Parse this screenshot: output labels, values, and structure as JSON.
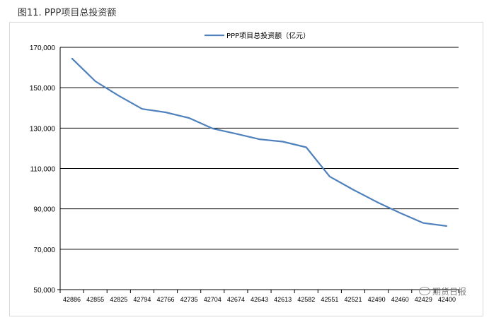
{
  "figure_title": "图11. PPP项目总投资额",
  "watermark": "期货日报",
  "colors": {
    "series": "#4f81bd",
    "grid": "#000000",
    "axis_text": "#000000"
  },
  "chart_data": {
    "type": "line",
    "title": "",
    "xlabel": "",
    "ylabel": "",
    "ylim": [
      50000,
      170000
    ],
    "grid": true,
    "legend": "top-center",
    "y_ticks": [
      "50,000",
      "70,000",
      "90,000",
      "110,000",
      "130,000",
      "150,000",
      "170,000"
    ],
    "categories": [
      "42886",
      "42855",
      "42825",
      "42794",
      "42766",
      "42735",
      "42704",
      "42674",
      "42643",
      "42613",
      "42582",
      "42551",
      "42521",
      "42490",
      "42460",
      "42429",
      "42400"
    ],
    "series": [
      {
        "name": "PPP项目总投资额（亿元）",
        "values": [
          164500,
          153200,
          146000,
          139500,
          137800,
          135000,
          129800,
          127200,
          124500,
          123300,
          120500,
          106000,
          99500,
          93500,
          88000,
          83000,
          81500
        ]
      }
    ]
  }
}
